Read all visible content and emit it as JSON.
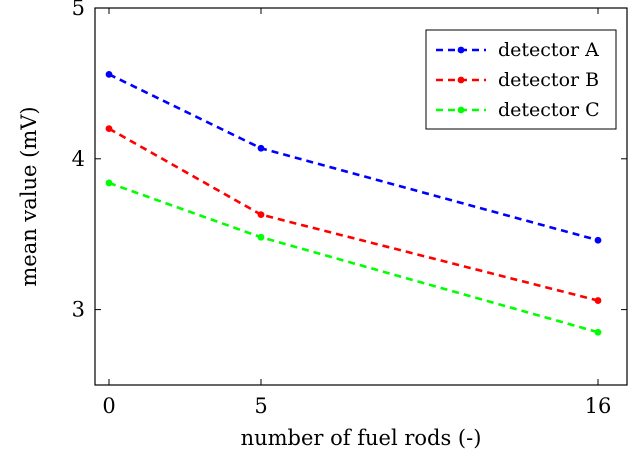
{
  "chart_data": {
    "type": "line",
    "x": [
      0,
      5,
      16
    ],
    "xticks": [
      "0",
      "5",
      "16"
    ],
    "yticks": [
      "3",
      "4",
      "5"
    ],
    "xlabel": "number of fuel rods (-)",
    "ylabel": "mean value (mV)",
    "ylim": [
      2.5,
      5
    ],
    "grid": false,
    "legend_position": "top-right",
    "series": [
      {
        "name": "detector A",
        "color": "#0000ff",
        "values": [
          4.56,
          4.07,
          3.46
        ]
      },
      {
        "name": "detector B",
        "color": "#ff0000",
        "values": [
          4.2,
          3.63,
          3.06
        ]
      },
      {
        "name": "detector C",
        "color": "#00ff00",
        "values": [
          3.84,
          3.48,
          2.85
        ]
      }
    ]
  }
}
